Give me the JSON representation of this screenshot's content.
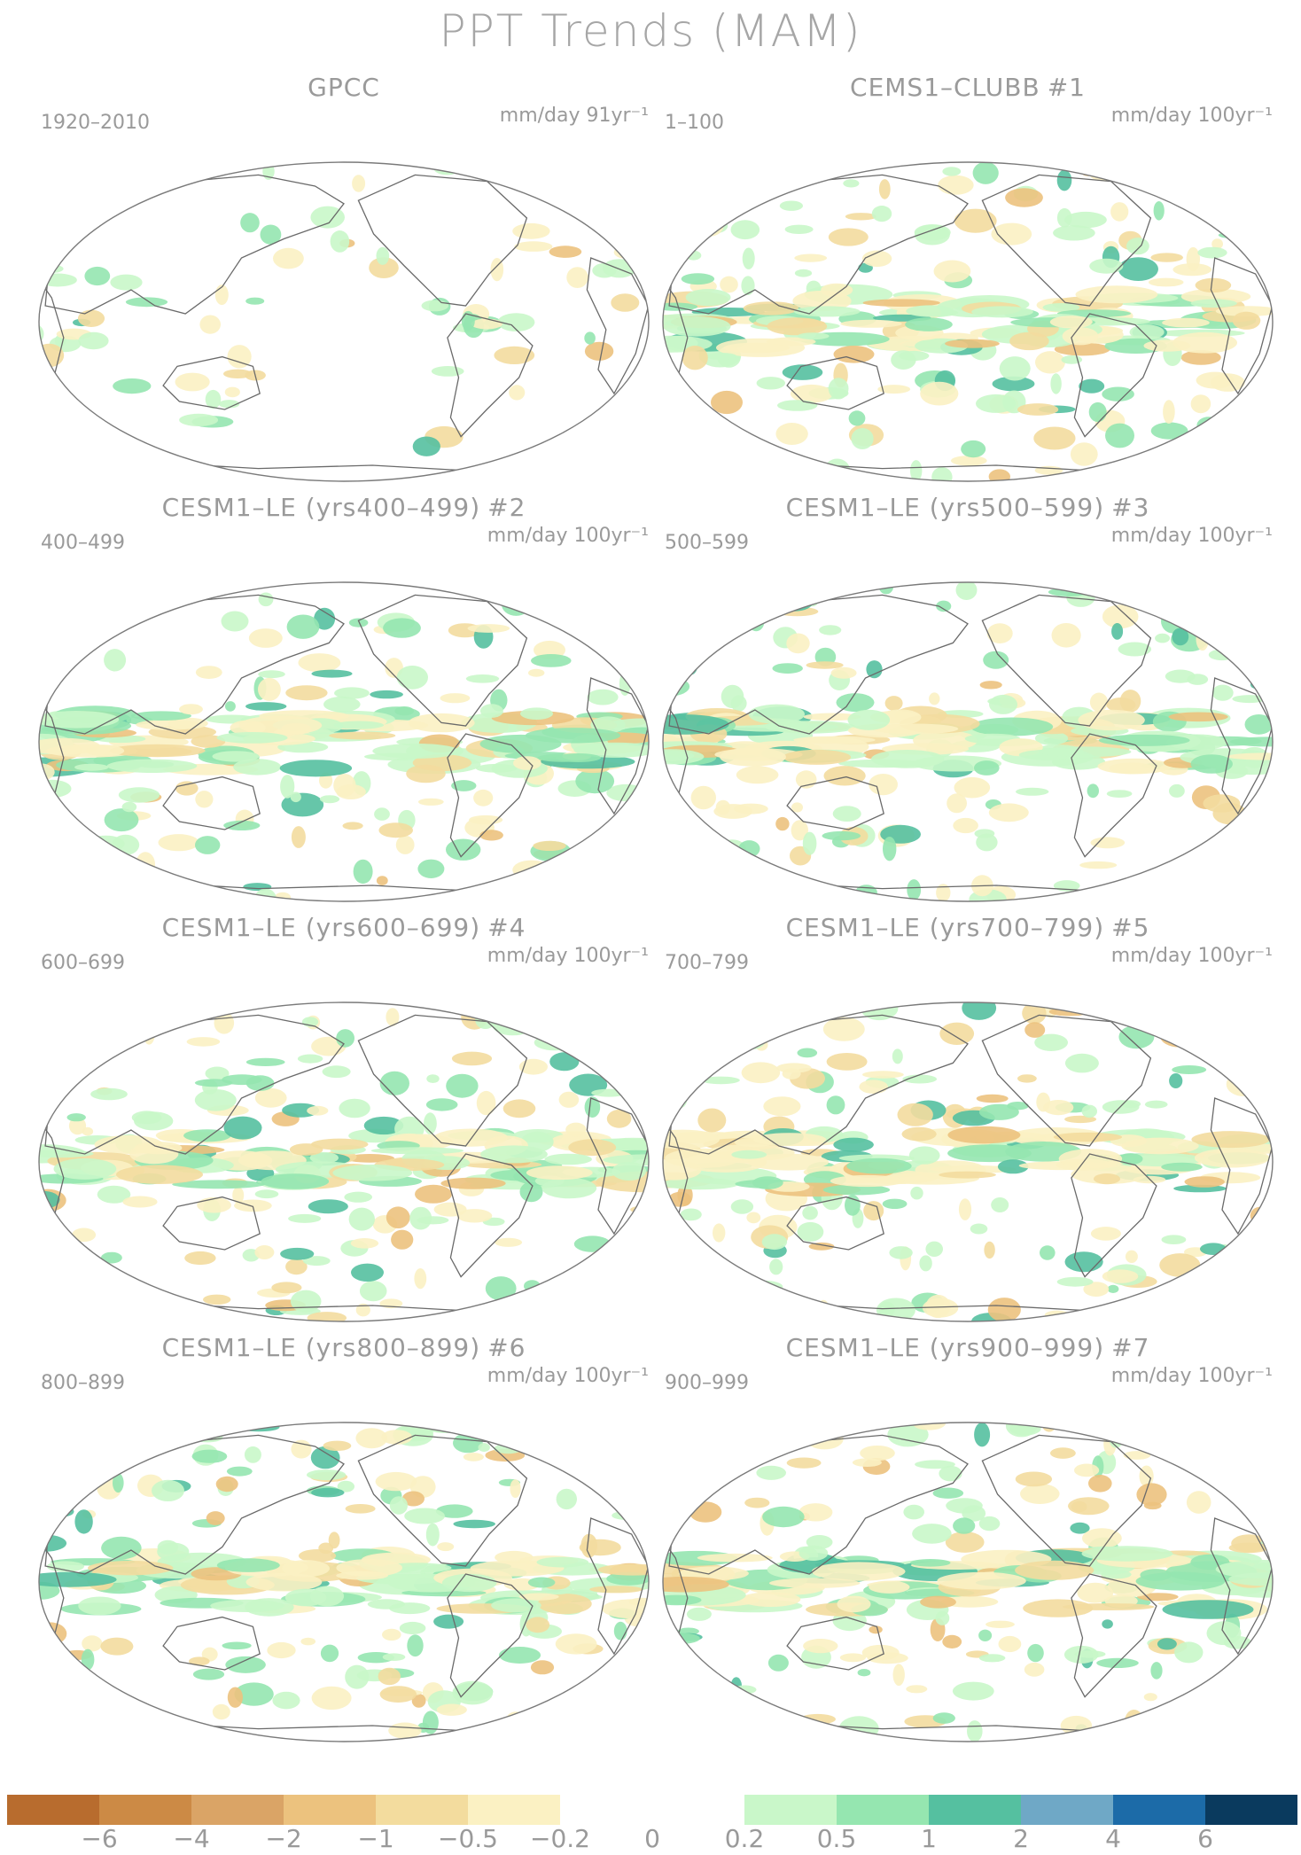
{
  "title": "PPT Trends (MAM)",
  "panels": [
    {
      "title": "GPCC",
      "tag": "",
      "years": "1920–2010",
      "units": "mm/day 91yr⁻¹",
      "kind": "obs"
    },
    {
      "title": "CEMS1–CLUBB",
      "tag": "#1",
      "years": "1–100",
      "units": "mm/day 100yr⁻¹",
      "kind": "model"
    },
    {
      "title": "CESM1–LE (yrs400–499)",
      "tag": "#2",
      "years": "400–499",
      "units": "mm/day 100yr⁻¹",
      "kind": "model"
    },
    {
      "title": "CESM1–LE (yrs500–599)",
      "tag": "#3",
      "years": "500–599",
      "units": "mm/day 100yr⁻¹",
      "kind": "model"
    },
    {
      "title": "CESM1–LE (yrs600–699)",
      "tag": "#4",
      "years": "600–699",
      "units": "mm/day 100yr⁻¹",
      "kind": "model"
    },
    {
      "title": "CESM1–LE (yrs700–799)",
      "tag": "#5",
      "years": "700–799",
      "units": "mm/day 100yr⁻¹",
      "kind": "model"
    },
    {
      "title": "CESM1–LE (yrs800–899)",
      "tag": "#6",
      "years": "800–899",
      "units": "mm/day 100yr⁻¹",
      "kind": "model"
    },
    {
      "title": "CESM1–LE (yrs900–999)",
      "tag": "#7",
      "years": "900–999",
      "units": "mm/day 100yr⁻¹",
      "kind": "model"
    }
  ],
  "colorbar": {
    "colors": [
      "#b86c2e",
      "#cc8a45",
      "#daa466",
      "#ecc27e",
      "#f3dc9e",
      "#fbf1c3",
      "#ffffff",
      "#ffffff",
      "#c9f7c9",
      "#95e6b0",
      "#55c0a0",
      "#6fa8c6",
      "#1c6ba8",
      "#0a3a5e"
    ],
    "labels": [
      "−6",
      "−4",
      "−2",
      "−1",
      "−0.5",
      "−0.2",
      "0",
      "0.2",
      "0.5",
      "1",
      "2",
      "4",
      "6"
    ]
  }
}
